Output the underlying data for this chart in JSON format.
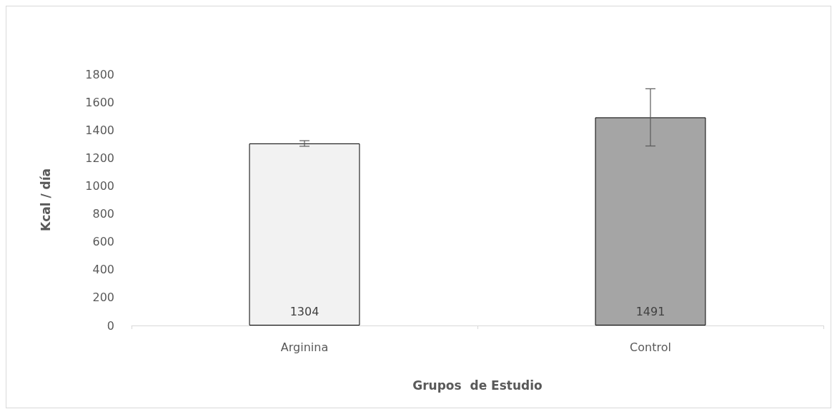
{
  "chart_data": {
    "type": "bar",
    "xlabel": "Grupos  de Estudio",
    "ylabel": "Kcal / día",
    "categories": [
      "Arginina",
      "Control"
    ],
    "values": [
      1304,
      1491
    ],
    "colors": [
      "#f2f2f2",
      "#a5a5a5"
    ],
    "errors": [
      20,
      205
    ],
    "ylim": [
      0,
      1800
    ],
    "yticks": [
      0,
      200,
      400,
      600,
      800,
      1000,
      1200,
      1400,
      1600,
      1800
    ],
    "grid": false,
    "data_labels": true
  }
}
